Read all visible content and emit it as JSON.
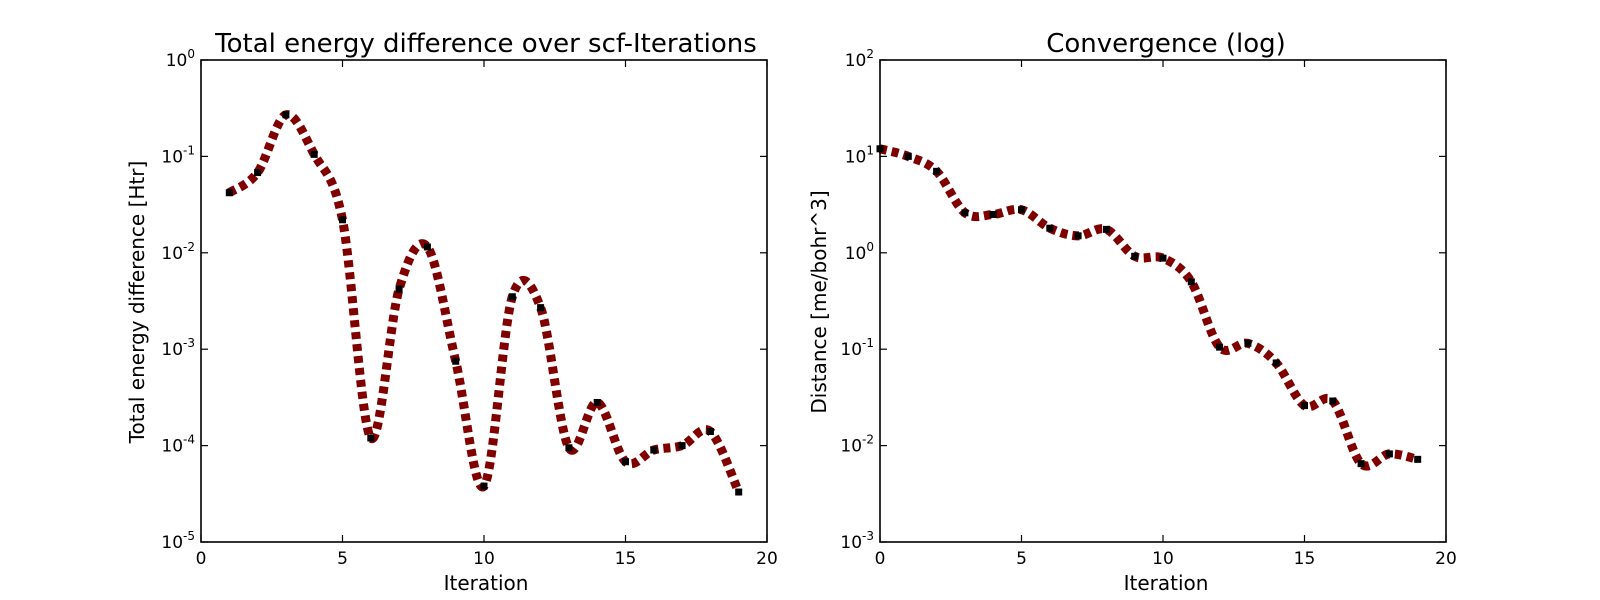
{
  "chart_data": [
    {
      "type": "line",
      "title": "Total energy difference over scf-Iterations",
      "xlabel": "Iteration",
      "ylabel": "Total energy difference [Htr]",
      "xlim": [
        0,
        20
      ],
      "ylim": [
        1e-05,
        1
      ],
      "yscale": "log",
      "grid": false,
      "line_style": "dotted",
      "colors": {
        "line": "#800000",
        "marker": "#000000"
      },
      "x_ticks": [
        "0",
        "5",
        "10",
        "15",
        "20"
      ],
      "y_ticks": [
        {
          "base": "10",
          "exp": "0",
          "value": 1
        },
        {
          "base": "10",
          "exp": "-1",
          "value": 0.1
        },
        {
          "base": "10",
          "exp": "-2",
          "value": 0.01
        },
        {
          "base": "10",
          "exp": "-3",
          "value": 0.001
        },
        {
          "base": "10",
          "exp": "-4",
          "value": 0.0001
        },
        {
          "base": "10",
          "exp": "-5",
          "value": 1e-05
        }
      ],
      "series": [
        {
          "x": [
            1,
            2,
            3,
            4,
            5,
            6,
            7,
            8,
            9,
            10,
            11,
            12,
            13,
            14,
            15,
            16,
            17,
            18,
            19
          ],
          "values": [
            0.042,
            0.068,
            0.27,
            0.105,
            0.022,
            0.00012,
            0.0042,
            0.0115,
            0.00075,
            3.8e-05,
            0.0035,
            0.0027,
            9.5e-05,
            0.00028,
            6.8e-05,
            9e-05,
            0.0001,
            0.00014,
            3.3e-05
          ]
        }
      ]
    },
    {
      "type": "line",
      "title": "Convergence (log)",
      "xlabel": "Iteration",
      "ylabel": "Distance [me/bohr^3]",
      "xlim": [
        0,
        20
      ],
      "ylim": [
        0.001,
        100
      ],
      "yscale": "log",
      "grid": false,
      "line_style": "dotted",
      "colors": {
        "line": "#800000",
        "marker": "#000000"
      },
      "x_ticks": [
        "0",
        "5",
        "10",
        "15",
        "20"
      ],
      "y_ticks": [
        {
          "base": "10",
          "exp": "2",
          "value": 100
        },
        {
          "base": "10",
          "exp": "1",
          "value": 10
        },
        {
          "base": "10",
          "exp": "0",
          "value": 1
        },
        {
          "base": "10",
          "exp": "-1",
          "value": 0.1
        },
        {
          "base": "10",
          "exp": "-2",
          "value": 0.01
        },
        {
          "base": "10",
          "exp": "-3",
          "value": 0.001
        }
      ],
      "series": [
        {
          "x": [
            0,
            1,
            2,
            3,
            4,
            5,
            6,
            7,
            8,
            9,
            10,
            11,
            12,
            13,
            14,
            15,
            16,
            17,
            18,
            19
          ],
          "values": [
            12,
            10,
            7,
            2.6,
            2.5,
            2.8,
            1.8,
            1.5,
            1.75,
            0.92,
            0.88,
            0.5,
            0.105,
            0.115,
            0.072,
            0.026,
            0.029,
            0.0065,
            0.0082,
            0.0072
          ]
        }
      ]
    }
  ]
}
